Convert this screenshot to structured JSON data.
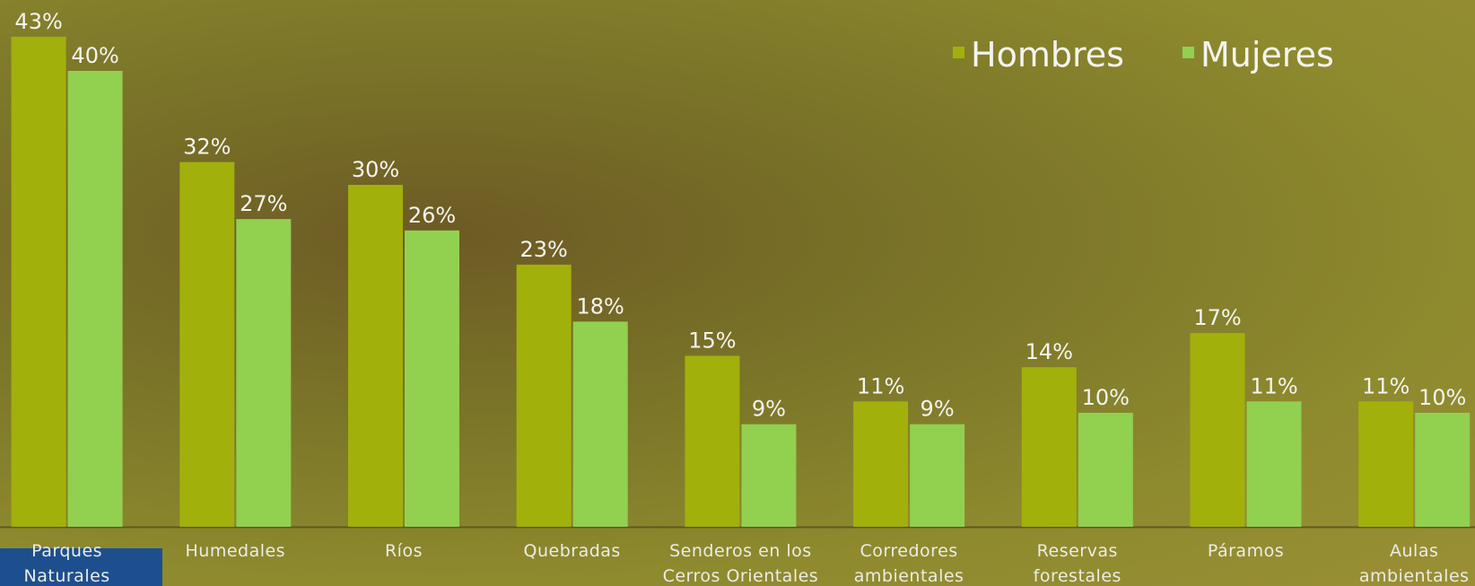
{
  "chart_data": {
    "type": "bar",
    "categories": [
      "Parques Naturales",
      "Humedales",
      "Ríos",
      "Quebradas",
      "Senderos en los Cerros Orientales",
      "Corredores ambientales",
      "Reservas forestales",
      "Páramos",
      "Aulas ambientales"
    ],
    "series": [
      {
        "name": "Hombres",
        "color": "#a2b00c",
        "values": [
          43,
          32,
          30,
          23,
          15,
          11,
          14,
          17,
          11
        ],
        "value_labels": [
          "43%",
          "32%",
          "30%",
          "23%",
          "15%",
          "11%",
          "14%",
          "17%",
          "11%"
        ]
      },
      {
        "name": "Mujeres",
        "color": "#92d050",
        "values": [
          40,
          27,
          26,
          18,
          9,
          9,
          10,
          11,
          10
        ],
        "value_labels": [
          "40%",
          "27%",
          "26%",
          "18%",
          "9%",
          "9%",
          "10%",
          "11%",
          "10%"
        ]
      }
    ],
    "legend": "top-right"
  }
}
